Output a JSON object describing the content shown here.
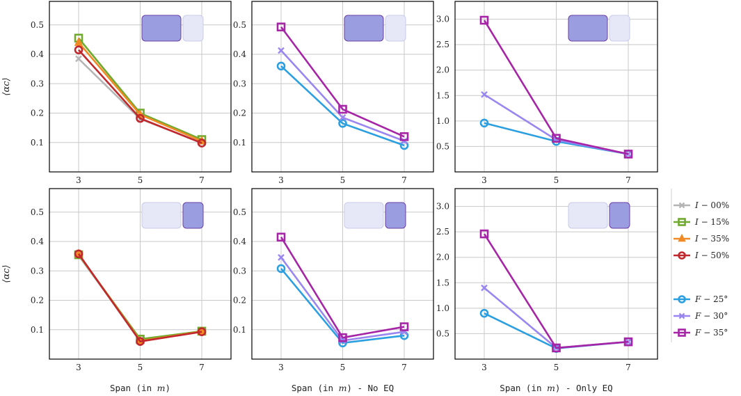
{
  "chart_data": [
    {
      "type": "line",
      "row": 0,
      "col": 0,
      "group": "I",
      "xlabel": "Span (in m)",
      "ylabel": "⟨αc⟩",
      "x": [
        3,
        5,
        7
      ],
      "ylim": [
        0.0,
        0.58
      ],
      "yticks": [
        "0.1",
        "0.2",
        "0.3",
        "0.4",
        "0.5"
      ],
      "inset": {
        "active": "left"
      },
      "series": [
        {
          "name": "I − 00%",
          "values": [
            0.385,
            0.18,
            0.1
          ]
        },
        {
          "name": "I − 15%",
          "values": [
            0.455,
            0.2,
            0.11
          ]
        },
        {
          "name": "I − 35%",
          "values": [
            0.44,
            0.195,
            0.105
          ]
        },
        {
          "name": "I − 50%",
          "values": [
            0.415,
            0.182,
            0.098
          ]
        }
      ]
    },
    {
      "type": "line",
      "row": 0,
      "col": 1,
      "group": "F",
      "xlabel": "Span (in m) - No EQ",
      "ylabel": "",
      "x": [
        3,
        5,
        7
      ],
      "ylim": [
        0.0,
        0.58
      ],
      "yticks": [
        "0.1",
        "0.2",
        "0.3",
        "0.4",
        "0.5"
      ],
      "inset": {
        "active": "left"
      },
      "series": [
        {
          "name": "F − 25°",
          "values": [
            0.36,
            0.165,
            0.09
          ]
        },
        {
          "name": "F − 30°",
          "values": [
            0.413,
            0.185,
            0.105
          ]
        },
        {
          "name": "F − 35°",
          "values": [
            0.493,
            0.213,
            0.12
          ]
        }
      ]
    },
    {
      "type": "line",
      "row": 0,
      "col": 2,
      "group": "F",
      "xlabel": "Span (in m) - Only EQ",
      "ylabel": "",
      "x": [
        3,
        5,
        7
      ],
      "ylim": [
        0.0,
        3.35
      ],
      "yticks": [
        "0.5",
        "1.0",
        "1.5",
        "2.0",
        "2.5",
        "3.0"
      ],
      "inset": {
        "active": "left"
      },
      "series": [
        {
          "name": "F − 25°",
          "values": [
            0.96,
            0.6,
            0.35
          ]
        },
        {
          "name": "F − 30°",
          "values": [
            1.52,
            0.63,
            0.35
          ]
        },
        {
          "name": "F − 35°",
          "values": [
            2.98,
            0.66,
            0.35
          ]
        }
      ]
    },
    {
      "type": "line",
      "row": 1,
      "col": 0,
      "group": "I",
      "xlabel": "Span (in m)",
      "ylabel": "⟨αc⟩",
      "x": [
        3,
        5,
        7
      ],
      "ylim": [
        0.0,
        0.58
      ],
      "yticks": [
        "0.1",
        "0.2",
        "0.3",
        "0.4",
        "0.5"
      ],
      "inset": {
        "active": "right"
      },
      "series": [
        {
          "name": "I − 00%",
          "values": [
            0.352,
            0.065,
            0.095
          ]
        },
        {
          "name": "I − 15%",
          "values": [
            0.355,
            0.068,
            0.095
          ]
        },
        {
          "name": "I − 35%",
          "values": [
            0.357,
            0.062,
            0.094
          ]
        },
        {
          "name": "I − 50%",
          "values": [
            0.358,
            0.06,
            0.093
          ]
        }
      ]
    },
    {
      "type": "line",
      "row": 1,
      "col": 1,
      "group": "F",
      "xlabel": "Span (in m) - No EQ",
      "ylabel": "",
      "x": [
        3,
        5,
        7
      ],
      "ylim": [
        0.0,
        0.58
      ],
      "yticks": [
        "0.1",
        "0.2",
        "0.3",
        "0.4",
        "0.5"
      ],
      "inset": {
        "active": "right"
      },
      "series": [
        {
          "name": "F − 25°",
          "values": [
            0.308,
            0.055,
            0.08
          ]
        },
        {
          "name": "F − 30°",
          "values": [
            0.346,
            0.063,
            0.093
          ]
        },
        {
          "name": "F − 35°",
          "values": [
            0.415,
            0.073,
            0.11
          ]
        }
      ]
    },
    {
      "type": "line",
      "row": 1,
      "col": 2,
      "group": "F",
      "xlabel": "Span (in m) - Only EQ",
      "ylabel": "",
      "x": [
        3,
        5,
        7
      ],
      "ylim": [
        0.0,
        3.35
      ],
      "yticks": [
        "0.5",
        "1.0",
        "1.5",
        "2.0",
        "2.5",
        "3.0"
      ],
      "inset": {
        "active": "right"
      },
      "series": [
        {
          "name": "F − 25°",
          "values": [
            0.9,
            0.21,
            0.34
          ]
        },
        {
          "name": "F − 30°",
          "values": [
            1.4,
            0.22,
            0.34
          ]
        },
        {
          "name": "F − 35°",
          "values": [
            2.46,
            0.22,
            0.34
          ]
        }
      ]
    }
  ],
  "legend": {
    "location": "right",
    "I": [
      {
        "label": "I − 00%",
        "color": "#b5b5b5",
        "marker": "x"
      },
      {
        "label": "I − 15%",
        "color": "#6fa92e",
        "marker": "square"
      },
      {
        "label": "I − 35%",
        "color": "#f08a24",
        "marker": "triangle"
      },
      {
        "label": "I − 50%",
        "color": "#c0282d",
        "marker": "circle"
      }
    ],
    "F": [
      {
        "label": "F − 25°",
        "color": "#2b9fe0",
        "marker": "circle"
      },
      {
        "label": "F − 30°",
        "color": "#9a86f0",
        "marker": "x"
      },
      {
        "label": "F − 35°",
        "color": "#a624a6",
        "marker": "square"
      }
    ]
  },
  "styles": {
    "I": [
      {
        "color": "#b5b5b5",
        "marker": "x"
      },
      {
        "color": "#6fa92e",
        "marker": "square"
      },
      {
        "color": "#f08a24",
        "marker": "triangle"
      },
      {
        "color": "#c0282d",
        "marker": "circle"
      }
    ],
    "F": [
      {
        "color": "#2b9fe0",
        "marker": "circle"
      },
      {
        "color": "#9a86f0",
        "marker": "x"
      },
      {
        "color": "#a624a6",
        "marker": "square"
      }
    ]
  },
  "colors": {
    "grid": "#c8c8c8",
    "frame": "#000000",
    "inset_active": "#9a9ee0",
    "inset_active_border": "#6a3fa6",
    "inset_inactive": "#e6e8f7",
    "inset_inactive_border": "#c9cbe8"
  }
}
